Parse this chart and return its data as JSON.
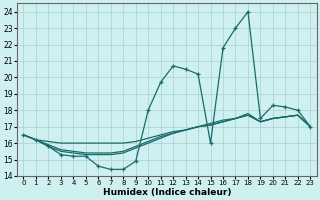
{
  "xlabel": "Humidex (Indice chaleur)",
  "bg_color": "#cff0f0",
  "grid_color": "#aacece",
  "line_color": "#1a6b6b",
  "xlim": [
    -0.5,
    23.5
  ],
  "ylim": [
    14,
    24.5
  ],
  "yticks": [
    14,
    15,
    16,
    17,
    18,
    19,
    20,
    21,
    22,
    23,
    24
  ],
  "xticks": [
    0,
    1,
    2,
    3,
    4,
    5,
    6,
    7,
    8,
    9,
    10,
    11,
    12,
    13,
    14,
    15,
    16,
    17,
    18,
    19,
    20,
    21,
    22,
    23
  ],
  "main_x": [
    0,
    1,
    2,
    3,
    4,
    5,
    6,
    7,
    8,
    9,
    10,
    11,
    12,
    13,
    14,
    15,
    16,
    17,
    18,
    19,
    20,
    21,
    22,
    23
  ],
  "main_y": [
    16.5,
    16.2,
    15.8,
    15.3,
    15.2,
    15.2,
    14.6,
    14.4,
    14.4,
    14.9,
    18.0,
    19.7,
    20.7,
    20.5,
    20.2,
    16.0,
    21.8,
    23.0,
    24.0,
    17.5,
    18.3,
    18.2,
    18.0,
    17.0
  ],
  "trend1_x": [
    0,
    1,
    2,
    3,
    4,
    5,
    6,
    7,
    8,
    9,
    10,
    11,
    12,
    13,
    14,
    15,
    16,
    17,
    18,
    19,
    20,
    21,
    22,
    23
  ],
  "trend1_y": [
    16.5,
    16.2,
    16.1,
    16.0,
    16.0,
    16.0,
    16.0,
    16.0,
    16.0,
    16.1,
    16.3,
    16.5,
    16.7,
    16.8,
    17.0,
    17.1,
    17.3,
    17.5,
    17.7,
    17.3,
    17.5,
    17.6,
    17.7,
    17.0
  ],
  "trend2_x": [
    0,
    1,
    2,
    3,
    4,
    5,
    6,
    7,
    8,
    9,
    10,
    11,
    12,
    13,
    14,
    15,
    16,
    17,
    18,
    19,
    20,
    21,
    22,
    23
  ],
  "trend2_y": [
    16.5,
    16.2,
    15.8,
    15.5,
    15.4,
    15.3,
    15.3,
    15.3,
    15.4,
    15.7,
    16.0,
    16.3,
    16.6,
    16.8,
    17.0,
    17.2,
    17.4,
    17.5,
    17.8,
    17.3,
    17.5,
    17.6,
    17.7,
    17.0
  ],
  "trend3_x": [
    0,
    1,
    2,
    3,
    4,
    5,
    6,
    7,
    8,
    9,
    10,
    11,
    12,
    13,
    14,
    15,
    16,
    17,
    18,
    19,
    20,
    21,
    22,
    23
  ],
  "trend3_y": [
    16.5,
    16.2,
    15.9,
    15.6,
    15.5,
    15.4,
    15.4,
    15.4,
    15.5,
    15.8,
    16.1,
    16.4,
    16.6,
    16.8,
    17.0,
    17.1,
    17.3,
    17.5,
    17.7,
    17.3,
    17.5,
    17.6,
    17.7,
    17.0
  ]
}
